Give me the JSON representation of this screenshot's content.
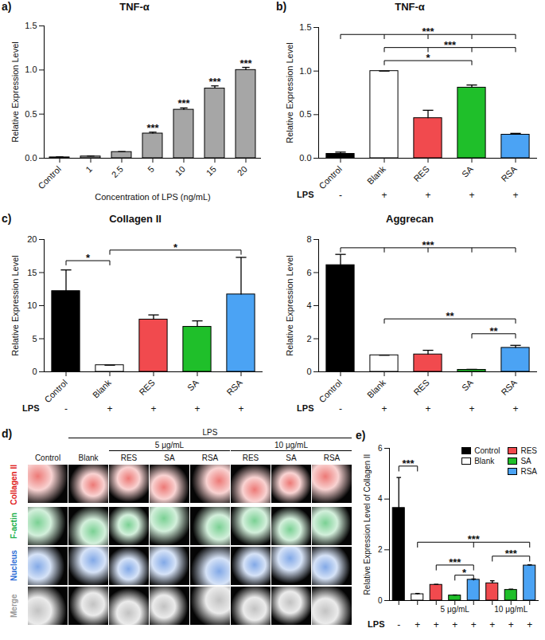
{
  "chart_data": [
    {
      "panel": "a)",
      "type": "bar",
      "title": "TNF-α",
      "xlabel": "Concentration of LPS (ng/mL)",
      "ylabel": "Relative Expression Level",
      "categories": [
        "Control",
        "1",
        "2.5",
        "5",
        "10",
        "15",
        "20"
      ],
      "values": [
        0.01,
        0.02,
        0.07,
        0.28,
        0.55,
        0.79,
        1.0
      ],
      "errors": [
        0.005,
        0.005,
        0.005,
        0.015,
        0.02,
        0.03,
        0.03
      ],
      "significance": [
        null,
        null,
        null,
        "***",
        "***",
        "***",
        "***"
      ],
      "color": "#a6a6a6",
      "ylim": [
        0,
        1.5
      ],
      "yticks": [
        {
          "value": 0,
          "label": "0.0"
        },
        {
          "value": 0.5,
          "label": "0.5"
        },
        {
          "value": 1,
          "label": "1.0"
        },
        {
          "value": 1.5,
          "label": "1.5"
        }
      ]
    },
    {
      "panel": "b)",
      "type": "bar",
      "title": "TNF-α",
      "ylabel": "Relative Expression Level",
      "categories": [
        "Control",
        "Blank",
        "RES",
        "SA",
        "RSA"
      ],
      "values": [
        0.05,
        1.0,
        0.46,
        0.81,
        0.27
      ],
      "errors": [
        0.02,
        0,
        0.09,
        0.03,
        0.015
      ],
      "colors": [
        "#000000",
        "#ffffff",
        "#f14a4e",
        "#1fbf2a",
        "#4ba3f4"
      ],
      "lps_label": "LPS",
      "lps": [
        "-",
        "+",
        "+",
        "+",
        "+"
      ],
      "brackets": [
        {
          "from": 0,
          "to": [
            1,
            2,
            3,
            4
          ],
          "y": 1.42,
          "label": "***"
        },
        {
          "from": 1,
          "to": [
            2,
            3,
            4
          ],
          "y": 1.27,
          "label": "***"
        },
        {
          "from": 1,
          "to": [
            3
          ],
          "y": 1.12,
          "label": "*"
        }
      ],
      "ylim": [
        0,
        1.5
      ],
      "yticks": [
        {
          "value": 0,
          "label": "0.0"
        },
        {
          "value": 0.5,
          "label": "0.5"
        },
        {
          "value": 1,
          "label": "1.0"
        },
        {
          "value": 1.5,
          "label": "1.5"
        }
      ]
    },
    {
      "panel": "c)",
      "type": "bar",
      "title": "Collagen II",
      "ylabel": "Relative Expression Level",
      "categories": [
        "Control",
        "Blank",
        "RES",
        "SA",
        "RSA"
      ],
      "values": [
        12.2,
        1.0,
        7.9,
        6.8,
        11.7
      ],
      "errors": [
        3.2,
        0,
        0.7,
        0.9,
        5.6
      ],
      "colors": [
        "#000000",
        "#ffffff",
        "#f14a4e",
        "#1fbf2a",
        "#4ba3f4"
      ],
      "lps_label": "LPS",
      "lps": [
        "-",
        "+",
        "+",
        "+",
        "+"
      ],
      "brackets": [
        {
          "from": 0,
          "to": [
            1
          ],
          "y": 16.8,
          "label": "*"
        },
        {
          "from": 1,
          "to": [
            4
          ],
          "y": 18.4,
          "label": "*"
        }
      ],
      "ylim": [
        0,
        20
      ],
      "yticks": [
        0,
        5,
        10,
        15,
        20
      ]
    },
    {
      "type": "bar",
      "title": "Aggrecan",
      "ylabel": "Relative Expression Level",
      "categories": [
        "Control",
        "Blank",
        "RES",
        "SA",
        "RSA"
      ],
      "values": [
        6.45,
        1.0,
        1.05,
        0.12,
        1.45
      ],
      "errors": [
        0.65,
        0,
        0.25,
        0.03,
        0.15
      ],
      "colors": [
        "#000000",
        "#ffffff",
        "#f14a4e",
        "#1fbf2a",
        "#4ba3f4"
      ],
      "lps_label": "LPS",
      "lps": [
        "-",
        "+",
        "+",
        "+",
        "+"
      ],
      "brackets": [
        {
          "from": 0,
          "to": [
            1,
            2,
            3,
            4
          ],
          "y": 7.5,
          "label": "***"
        },
        {
          "from": 1,
          "to": [
            4
          ],
          "y": 3.2,
          "label": "**"
        },
        {
          "from": 3,
          "to": [
            4
          ],
          "y": 2.3,
          "label": "**"
        }
      ],
      "ylim": [
        0,
        8
      ],
      "yticks": [
        0,
        2,
        4,
        6,
        8
      ]
    },
    {
      "panel": "e)",
      "type": "bar",
      "ylabel": "Relative Expression Level of Collagen II",
      "categories": [
        null,
        null,
        null,
        null,
        null,
        null,
        null,
        null
      ],
      "values": [
        3.65,
        0.25,
        0.62,
        0.2,
        0.82,
        0.68,
        0.42,
        1.38
      ],
      "errors": [
        1.2,
        0.03,
        0.02,
        0.02,
        0.03,
        0.1,
        0.03,
        0.03
      ],
      "bar_series": [
        "Control",
        "Blank",
        "RES",
        "SA",
        "RSA",
        "RES",
        "SA",
        "RSA"
      ],
      "series": [
        {
          "name": "Control",
          "color": "#000000"
        },
        {
          "name": "Blank",
          "color": "#ffffff"
        },
        {
          "name": "RES",
          "color": "#f14a4e"
        },
        {
          "name": "SA",
          "color": "#1fbf2a"
        },
        {
          "name": "RSA",
          "color": "#4ba3f4"
        }
      ],
      "legend": "top-right",
      "groups": [
        {
          "label": "5 μg/mL",
          "positions": [
            2,
            3,
            4
          ]
        },
        {
          "label": "10 μg/mL",
          "positions": [
            5,
            6,
            7
          ]
        }
      ],
      "lps_label": "LPS",
      "lps": [
        "-",
        "+",
        "+",
        "+",
        "+",
        "+",
        "+",
        "+"
      ],
      "brackets": [
        {
          "from": 0,
          "to": [
            1
          ],
          "y": 5.3,
          "label": "***"
        },
        {
          "from": 1,
          "to": [
            4,
            7
          ],
          "y": 2.3,
          "label": "***"
        },
        {
          "from": 5,
          "to": [
            7
          ],
          "y": 1.75,
          "label": "***"
        },
        {
          "from": 2,
          "to": [
            4
          ],
          "y": 1.4,
          "label": "***"
        },
        {
          "from": 3,
          "to": [
            4
          ],
          "y": 1.0,
          "label": "*"
        }
      ],
      "ylim": [
        0,
        6
      ],
      "yticks": [
        0,
        2,
        4,
        6
      ]
    }
  ],
  "figure_panel": {
    "panel": "d)",
    "type": "image_grid",
    "top_label": "LPS",
    "top_columns": [
      1,
      2,
      3,
      4,
      5,
      6,
      7
    ],
    "groups": [
      {
        "label": "5 μg/mL",
        "columns": [
          2,
          3,
          4
        ]
      },
      {
        "label": "10 μg/mL",
        "columns": [
          5,
          6,
          7
        ]
      }
    ],
    "columns": [
      "Control",
      "Blank",
      "RES",
      "SA",
      "RSA",
      "RES",
      "SA",
      "RSA"
    ],
    "rows": [
      {
        "label": "Collagen II",
        "color": "#e0201b"
      },
      {
        "label": "F-actin",
        "color": "#22b14c"
      },
      {
        "label": "Nucleus",
        "color": "#2f6fd6"
      },
      {
        "label": "Merge",
        "color": "#9a9a9a"
      }
    ]
  }
}
